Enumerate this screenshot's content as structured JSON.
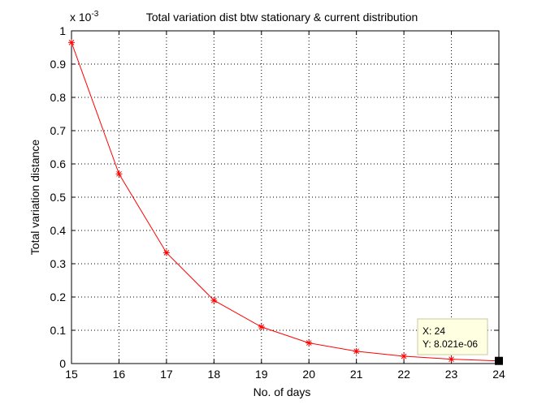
{
  "chart_data": {
    "type": "line",
    "title": "Total variation dist btw stationary & current distribution",
    "xlabel": "No. of days",
    "ylabel": "Total variation distance",
    "y_multiplier_label": "x 10",
    "y_multiplier_exponent": "-3",
    "xlim": [
      15,
      24
    ],
    "ylim": [
      0,
      1
    ],
    "x_ticks": [
      "15",
      "16",
      "17",
      "18",
      "19",
      "20",
      "21",
      "22",
      "23",
      "24"
    ],
    "y_ticks": [
      "0",
      "0.1",
      "0.2",
      "0.3",
      "0.4",
      "0.5",
      "0.6",
      "0.7",
      "0.8",
      "0.9",
      "1"
    ],
    "grid": true,
    "series": [
      {
        "color": "#ff0000",
        "marker": "asterisk",
        "x": [
          15,
          16,
          17,
          18,
          19,
          20,
          21,
          22,
          23,
          24
        ],
        "y": [
          0.965,
          0.57,
          0.333,
          0.19,
          0.11,
          0.062,
          0.037,
          0.022,
          0.013,
          0.008021
        ]
      }
    ],
    "datatip": {
      "x_text": "X: 24",
      "y_text": "Y: 8.021e-06",
      "point": [
        24,
        0.008021
      ]
    }
  }
}
